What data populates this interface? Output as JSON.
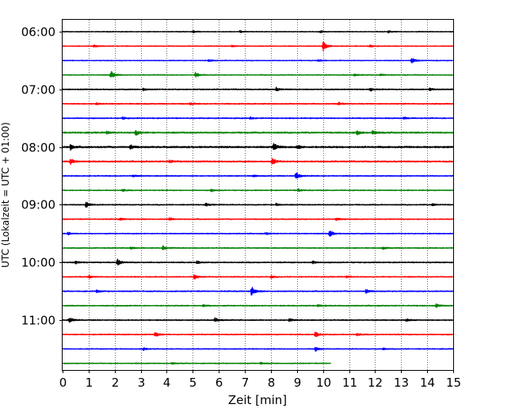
{
  "chart_data": {
    "type": "line",
    "title": "",
    "xlabel": "Zeit  [min]",
    "ylabel": "UTC (Lokalzeit = UTC + 01:00)",
    "x_range": [
      0,
      15
    ],
    "x_ticks": [
      "0",
      "1",
      "2",
      "3",
      "4",
      "5",
      "6",
      "7",
      "8",
      "9",
      "10",
      "11",
      "12",
      "13",
      "14",
      "15"
    ],
    "y_tick_labels": [
      "06:00",
      "07:00",
      "08:00",
      "09:00",
      "10:00",
      "11:00"
    ],
    "grid": "vertical dotted",
    "colors": [
      "#000000",
      "#ff0000",
      "#0000ff",
      "#008000"
    ],
    "traces": [
      {
        "start": "06:00",
        "color": "#000000",
        "noise": 0.45,
        "end": 15,
        "events": [
          [
            5,
            1.4
          ],
          [
            6.8,
            1.2
          ],
          [
            9.9,
            1.3
          ],
          [
            12.5,
            1.5
          ]
        ]
      },
      {
        "start": "06:15",
        "color": "#ff0000",
        "noise": 0.45,
        "end": 15,
        "events": [
          [
            1.2,
            1.6
          ],
          [
            6.5,
            1.5
          ],
          [
            10,
            6.5
          ],
          [
            11.8,
            1.6
          ]
        ]
      },
      {
        "start": "06:30",
        "color": "#0000ff",
        "noise": 0.45,
        "end": 15,
        "events": [
          [
            5.6,
            1.3
          ],
          [
            9.8,
            1.2
          ],
          [
            13.4,
            3.5
          ]
        ]
      },
      {
        "start": "06:45",
        "color": "#008000",
        "noise": 0.5,
        "end": 15,
        "events": [
          [
            1.85,
            5.5
          ],
          [
            5.1,
            3.5
          ],
          [
            11.2,
            1.3
          ],
          [
            12.2,
            1.2
          ]
        ]
      },
      {
        "start": "07:00",
        "color": "#000000",
        "noise": 0.6,
        "end": 15,
        "events": [
          [
            3.1,
            1.7
          ],
          [
            8.2,
            2.2
          ],
          [
            11.8,
            2.2
          ],
          [
            14.1,
            1.5
          ]
        ]
      },
      {
        "start": "07:15",
        "color": "#ff0000",
        "noise": 0.6,
        "end": 15,
        "events": [
          [
            1.3,
            1.5
          ],
          [
            4.9,
            1.4
          ],
          [
            10.6,
            1.8
          ]
        ]
      },
      {
        "start": "07:30",
        "color": "#0000ff",
        "noise": 0.6,
        "end": 15,
        "events": [
          [
            2.3,
            1.3
          ],
          [
            7.2,
            1.3
          ],
          [
            13.1,
            1.4
          ]
        ]
      },
      {
        "start": "07:45",
        "color": "#008000",
        "noise": 0.75,
        "end": 15,
        "events": [
          [
            1.7,
            1.8
          ],
          [
            2.8,
            3.5
          ],
          [
            11.3,
            2.8
          ],
          [
            11.9,
            3
          ]
        ]
      },
      {
        "start": "08:00",
        "color": "#000000",
        "noise": 0.95,
        "end": 15,
        "events": [
          [
            0.3,
            3.5
          ],
          [
            2.6,
            2.5
          ],
          [
            8.1,
            5
          ],
          [
            9,
            2.8
          ]
        ]
      },
      {
        "start": "08:15",
        "color": "#ff0000",
        "noise": 0.75,
        "end": 15,
        "events": [
          [
            0.3,
            3.5
          ],
          [
            4.1,
            2
          ],
          [
            8.05,
            4.5
          ]
        ]
      },
      {
        "start": "08:30",
        "color": "#0000ff",
        "noise": 0.55,
        "end": 15,
        "events": [
          [
            2.7,
            1.5
          ],
          [
            7.3,
            1.3
          ],
          [
            8.95,
            5
          ]
        ]
      },
      {
        "start": "08:45",
        "color": "#008000",
        "noise": 0.5,
        "end": 15,
        "events": [
          [
            2.3,
            1.5
          ],
          [
            5.7,
            1.4
          ],
          [
            9.05,
            1.8
          ]
        ]
      },
      {
        "start": "09:00",
        "color": "#000000",
        "noise": 0.55,
        "end": 15,
        "events": [
          [
            0.9,
            4
          ],
          [
            5.5,
            1.7
          ],
          [
            8.2,
            1.7
          ],
          [
            14.2,
            1.8
          ]
        ]
      },
      {
        "start": "09:15",
        "color": "#ff0000",
        "noise": 0.55,
        "end": 15,
        "events": [
          [
            2.2,
            1.6
          ],
          [
            4.1,
            2
          ],
          [
            10.5,
            1.5
          ]
        ]
      },
      {
        "start": "09:30",
        "color": "#0000ff",
        "noise": 0.5,
        "end": 15,
        "events": [
          [
            0.2,
            1.8
          ],
          [
            7.8,
            1.4
          ],
          [
            10.25,
            4.5
          ]
        ]
      },
      {
        "start": "09:45",
        "color": "#008000",
        "noise": 0.55,
        "end": 15,
        "events": [
          [
            2.6,
            1.5
          ],
          [
            3.85,
            2.8
          ],
          [
            12.3,
            1.5
          ]
        ]
      },
      {
        "start": "10:00",
        "color": "#000000",
        "noise": 0.6,
        "end": 15,
        "events": [
          [
            0.5,
            1.8
          ],
          [
            2.1,
            4.5
          ],
          [
            5.15,
            2
          ],
          [
            9.6,
            1.8
          ]
        ]
      },
      {
        "start": "10:15",
        "color": "#ff0000",
        "noise": 0.55,
        "end": 15,
        "events": [
          [
            1,
            1.8
          ],
          [
            5.05,
            3.2
          ],
          [
            8,
            1.5
          ],
          [
            10.9,
            1.5
          ]
        ]
      },
      {
        "start": "10:30",
        "color": "#0000ff",
        "noise": 0.6,
        "end": 15,
        "events": [
          [
            1.3,
            1.5
          ],
          [
            7.25,
            6.5
          ],
          [
            11.65,
            2.5
          ]
        ]
      },
      {
        "start": "10:45",
        "color": "#008000",
        "noise": 0.55,
        "end": 15,
        "events": [
          [
            5.4,
            1.5
          ],
          [
            9.8,
            1.4
          ],
          [
            14.35,
            2.2
          ]
        ]
      },
      {
        "start": "11:00",
        "color": "#000000",
        "noise": 0.6,
        "end": 15,
        "events": [
          [
            0.25,
            3.8
          ],
          [
            5.85,
            3
          ],
          [
            8.7,
            1.7
          ],
          [
            13.2,
            1.6
          ]
        ]
      },
      {
        "start": "11:15",
        "color": "#ff0000",
        "noise": 0.55,
        "end": 15,
        "events": [
          [
            3.55,
            3
          ],
          [
            9.7,
            4
          ],
          [
            11.3,
            1.5
          ]
        ]
      },
      {
        "start": "11:30",
        "color": "#0000ff",
        "noise": 0.5,
        "end": 15,
        "events": [
          [
            3.1,
            1.8
          ],
          [
            9.7,
            3
          ],
          [
            12.3,
            1.3
          ]
        ]
      },
      {
        "start": "11:45",
        "color": "#008000",
        "noise": 0.5,
        "end": 10.3,
        "events": [
          [
            4.2,
            1.3
          ],
          [
            7.6,
            1.3
          ]
        ]
      }
    ]
  }
}
